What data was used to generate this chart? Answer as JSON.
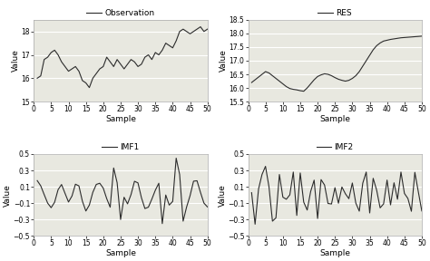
{
  "obs_ylim": [
    15.0,
    18.5
  ],
  "obs_yticks": [
    15.0,
    16.0,
    17.0,
    18.0
  ],
  "res_ylim": [
    15.5,
    18.5
  ],
  "res_yticks": [
    15.5,
    16.0,
    16.5,
    17.0,
    17.5,
    18.0,
    18.5
  ],
  "imf1_ylim": [
    -0.5,
    0.5
  ],
  "imf1_yticks": [
    -0.5,
    -0.3,
    -0.1,
    0.1,
    0.3,
    0.5
  ],
  "imf2_ylim": [
    -0.5,
    0.5
  ],
  "imf2_yticks": [
    -0.5,
    -0.3,
    -0.1,
    0.1,
    0.3,
    0.5
  ],
  "xlabel": "Sample",
  "ylabel": "Value",
  "xlim": [
    0,
    50
  ],
  "xticks": [
    0,
    5,
    10,
    15,
    20,
    25,
    30,
    35,
    40,
    45,
    50
  ],
  "line_color": "#2c2c2c",
  "line_width": 0.8,
  "legend_fontsize": 6.5,
  "tick_fontsize": 5.5,
  "label_fontsize": 6.5,
  "bg_color": "#ffffff",
  "axes_bg": "#e8e8e0",
  "grid_color": "#ffffff",
  "spine_color": "#aaaaaa"
}
